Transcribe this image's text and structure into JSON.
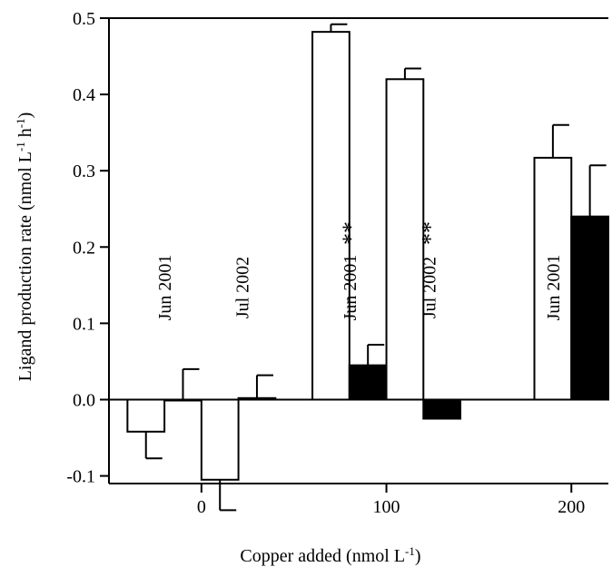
{
  "chart_data": {
    "type": "bar",
    "xlabel": "Copper added (nmol L",
    "xlabel_sup": "-1",
    "xlabel_end": ")",
    "ylabel": "Ligand production rate (nmol L",
    "ylabel_sup1": "-1",
    "ylabel_mid": " h",
    "ylabel_sup2": "-1",
    "ylabel_end": ")",
    "ylim": [
      -0.11,
      0.5
    ],
    "yticks": [
      -0.1,
      0.0,
      0.1,
      0.2,
      0.3,
      0.4,
      0.5
    ],
    "ytick_labels": [
      "-0.1",
      "0.0",
      "0.1",
      "0.2",
      "0.3",
      "0.4",
      "0.5"
    ],
    "xlim": [
      -50,
      220
    ],
    "xticks": [
      0,
      100,
      200
    ],
    "xtick_labels": [
      "0",
      "100",
      "200"
    ],
    "colors": {
      "open": "#ffffff",
      "filled": "#000000",
      "stroke": "#000000"
    },
    "bars": [
      {
        "x_center": -30,
        "width": 20,
        "value": -0.042,
        "error": 0.035,
        "fill": "open"
      },
      {
        "x_center": -10,
        "width": 20,
        "value": 0.0,
        "error": 0.04,
        "fill": "filled"
      },
      {
        "x_center": 10,
        "width": 20,
        "value": -0.105,
        "error": 0.04,
        "fill": "open"
      },
      {
        "x_center": 30,
        "width": 20,
        "value": 0.002,
        "error": 0.03,
        "fill": "filled"
      },
      {
        "x_center": 70,
        "width": 20,
        "value": 0.482,
        "error": 0.01,
        "fill": "open"
      },
      {
        "x_center": 90,
        "width": 20,
        "value": 0.045,
        "error": 0.027,
        "fill": "filled"
      },
      {
        "x_center": 110,
        "width": 20,
        "value": 0.42,
        "error": 0.014,
        "fill": "open"
      },
      {
        "x_center": 130,
        "width": 20,
        "value": -0.025,
        "error": null,
        "fill": "filled"
      },
      {
        "x_center": 190,
        "width": 20,
        "value": 0.317,
        "error": 0.043,
        "fill": "open"
      },
      {
        "x_center": 210,
        "width": 20,
        "value": 0.24,
        "error": 0.067,
        "fill": "filled"
      }
    ],
    "annotations": [
      {
        "text": "Jun 2001",
        "x": -20
      },
      {
        "text": "Jul 2002",
        "x": 22
      },
      {
        "text": "Jun 2001",
        "x": 80,
        "sig": "**"
      },
      {
        "text": "Jul 2002",
        "x": 123,
        "sig": "**"
      },
      {
        "text": "Jun 2001",
        "x": 190
      }
    ]
  }
}
